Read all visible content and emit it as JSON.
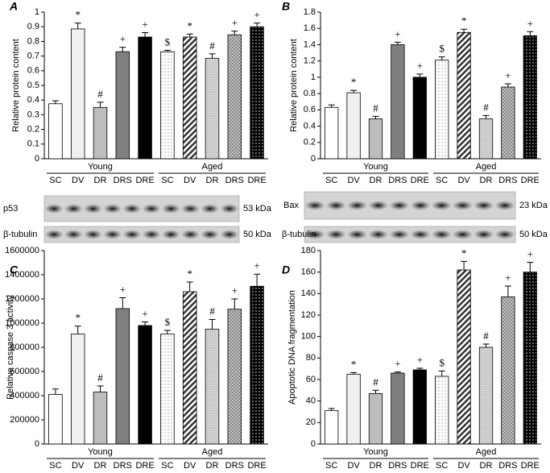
{
  "chart_data": [
    {
      "type": "bar",
      "panel": "A",
      "ylabel": "Relative protein content",
      "categories": [
        "SC",
        "DV",
        "DR",
        "DRS",
        "DRE",
        "SC",
        "DV",
        "DR",
        "DRS",
        "DRE"
      ],
      "groups": [
        "Young",
        "Aged"
      ],
      "values": [
        0.375,
        0.885,
        0.35,
        0.73,
        0.83,
        0.73,
        0.83,
        0.685,
        0.845,
        0.9
      ],
      "errors": [
        0.02,
        0.04,
        0.035,
        0.03,
        0.03,
        0.01,
        0.02,
        0.03,
        0.025,
        0.025
      ],
      "markers": [
        null,
        "*",
        "#",
        "+",
        "+",
        "$",
        "*",
        "#",
        "+",
        "+"
      ],
      "bar_styles": [
        "white",
        "light",
        "mid",
        "dark",
        "black",
        "dots",
        "stripes",
        "grey-dots",
        "grey-checks",
        "black-dots"
      ],
      "ylim": [
        0,
        1
      ],
      "yticks": [
        0,
        0.1,
        0.2,
        0.3,
        0.4,
        0.5,
        0.6,
        0.7,
        0.8,
        0.9,
        1
      ],
      "blots": [
        {
          "protein": "p53",
          "size": "53 kDa"
        },
        {
          "protein": "β-tubulin",
          "size": "50 kDa"
        }
      ]
    },
    {
      "type": "bar",
      "panel": "B",
      "ylabel": "Relative protein content",
      "categories": [
        "SC",
        "DV",
        "DR",
        "DRS",
        "DRE",
        "SC",
        "DV",
        "DR",
        "DRS",
        "DRE"
      ],
      "groups": [
        "Young",
        "Aged"
      ],
      "values": [
        0.63,
        0.81,
        0.49,
        1.4,
        1.0,
        1.21,
        1.55,
        0.49,
        0.88,
        1.51
      ],
      "errors": [
        0.03,
        0.03,
        0.03,
        0.03,
        0.04,
        0.04,
        0.04,
        0.04,
        0.04,
        0.05
      ],
      "markers": [
        null,
        "*",
        "#",
        "+",
        "+",
        "$",
        "*",
        "#",
        "+",
        "+"
      ],
      "bar_styles": [
        "white",
        "light",
        "mid",
        "dark",
        "black",
        "dots",
        "stripes",
        "grey-dots",
        "grey-checks",
        "black-dots"
      ],
      "ylim": [
        0,
        1.8
      ],
      "yticks": [
        0,
        0.2,
        0.4,
        0.6,
        0.8,
        1,
        1.2,
        1.4,
        1.6,
        1.8
      ],
      "blots": [
        {
          "protein": "Bax",
          "size": "23 kDa"
        },
        {
          "protein": "β-tubulin",
          "size": "50 kDa"
        }
      ]
    },
    {
      "type": "bar",
      "panel": "C",
      "ylabel": "Relative caspase 3 activity",
      "categories": [
        "SC",
        "DV",
        "DR",
        "DRS",
        "DRE",
        "SC",
        "DV",
        "DR",
        "DRS",
        "DRE"
      ],
      "groups": [
        "Young",
        "Aged"
      ],
      "values": [
        410000,
        910000,
        430000,
        1120000,
        980000,
        910000,
        1260000,
        950000,
        1115000,
        1305000
      ],
      "errors": [
        45000,
        65000,
        50000,
        90000,
        30000,
        30000,
        80000,
        80000,
        85000,
        100000
      ],
      "markers": [
        null,
        "*",
        "#",
        "+",
        "+",
        "$",
        "*",
        "#",
        "+",
        "+"
      ],
      "bar_styles": [
        "white",
        "light",
        "mid",
        "dark",
        "black",
        "dots",
        "stripes",
        "grey-dots",
        "grey-checks",
        "black-dots"
      ],
      "ylim": [
        0,
        1600000
      ],
      "yticks": [
        0,
        200000,
        400000,
        600000,
        800000,
        1000000,
        1200000,
        1400000,
        1600000
      ]
    },
    {
      "type": "bar",
      "panel": "D",
      "ylabel": "Apoptotic DNA fragmentation",
      "categories": [
        "SC",
        "DV",
        "DR",
        "DRS",
        "DRE",
        "SC",
        "DV",
        "DR",
        "DRS",
        "DRE"
      ],
      "groups": [
        "Young",
        "Aged"
      ],
      "values": [
        31,
        65,
        47,
        66,
        69,
        63,
        162,
        90,
        137,
        160
      ],
      "errors": [
        2,
        1.5,
        3,
        1,
        1.5,
        5,
        8,
        3,
        10,
        9
      ],
      "markers": [
        null,
        "*",
        "#",
        "+",
        "+",
        "$",
        "*",
        "#",
        "+",
        "+"
      ],
      "bar_styles": [
        "white",
        "light",
        "mid",
        "dark",
        "black",
        "dots",
        "stripes",
        "grey-dots",
        "grey-checks",
        "black-dots"
      ],
      "ylim": [
        0,
        180
      ],
      "yticks": [
        0,
        20,
        40,
        60,
        80,
        100,
        120,
        140,
        160,
        180
      ]
    }
  ]
}
